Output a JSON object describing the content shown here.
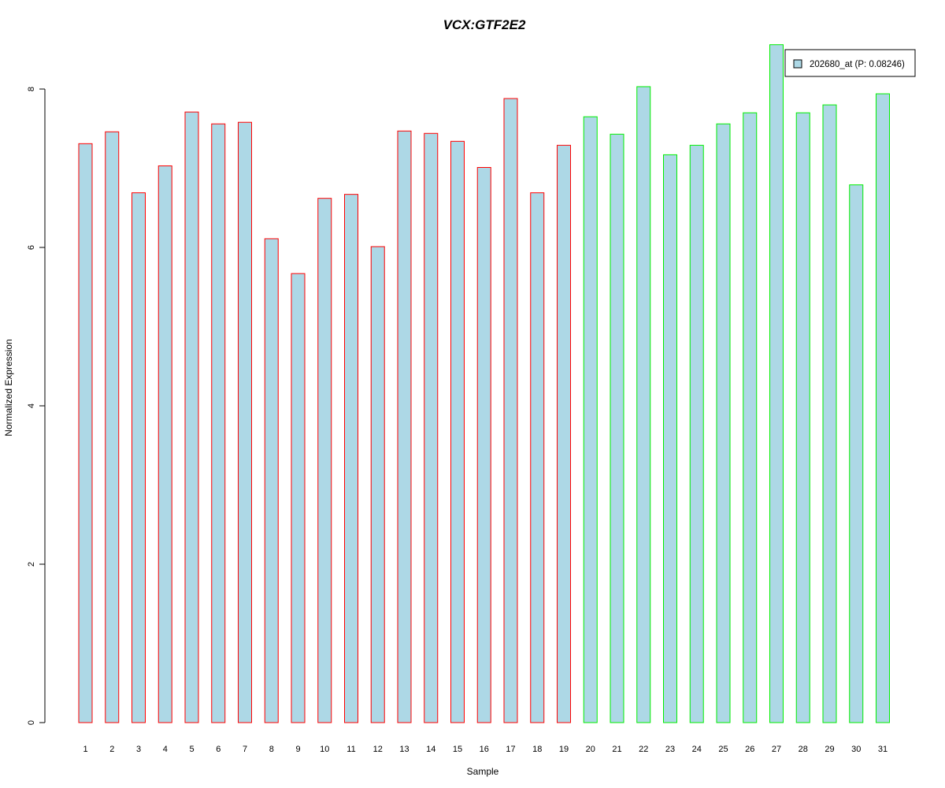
{
  "chart_data": {
    "type": "bar",
    "title": "VCX:GTF2E2",
    "xlabel": "Sample",
    "ylabel": "Normalized Expression",
    "ylim": [
      0,
      8.5
    ],
    "yticks": [
      "0",
      "2",
      "4",
      "6",
      "8"
    ],
    "categories": [
      "1",
      "2",
      "3",
      "4",
      "5",
      "6",
      "7",
      "8",
      "9",
      "10",
      "11",
      "12",
      "13",
      "14",
      "15",
      "16",
      "17",
      "18",
      "19",
      "20",
      "21",
      "22",
      "23",
      "24",
      "25",
      "26",
      "27",
      "28",
      "29",
      "30",
      "31"
    ],
    "series": [
      {
        "name": "202680_at (P: 0.08246)",
        "values": [
          7.31,
          7.46,
          6.69,
          7.03,
          7.71,
          7.56,
          7.58,
          6.11,
          5.67,
          6.62,
          6.67,
          6.01,
          7.47,
          7.44,
          7.34,
          7.01,
          7.88,
          6.69,
          7.29,
          7.65,
          7.43,
          8.03,
          7.17,
          7.29,
          7.56,
          7.7,
          8.56,
          7.7,
          7.8,
          6.79,
          7.94
        ]
      }
    ],
    "group_of_bar": [
      "a",
      "a",
      "a",
      "a",
      "a",
      "a",
      "a",
      "a",
      "a",
      "a",
      "a",
      "a",
      "a",
      "a",
      "a",
      "a",
      "a",
      "a",
      "a",
      "b",
      "b",
      "b",
      "b",
      "b",
      "b",
      "b",
      "b",
      "b",
      "b",
      "b",
      "b"
    ],
    "colors": {
      "title": "#0000cc",
      "bar_fill": "#add8e6",
      "group_a_border": "#ff0000",
      "group_b_border": "#00ee00",
      "axis": "#000000"
    },
    "grid": false,
    "legend": "top-right"
  }
}
